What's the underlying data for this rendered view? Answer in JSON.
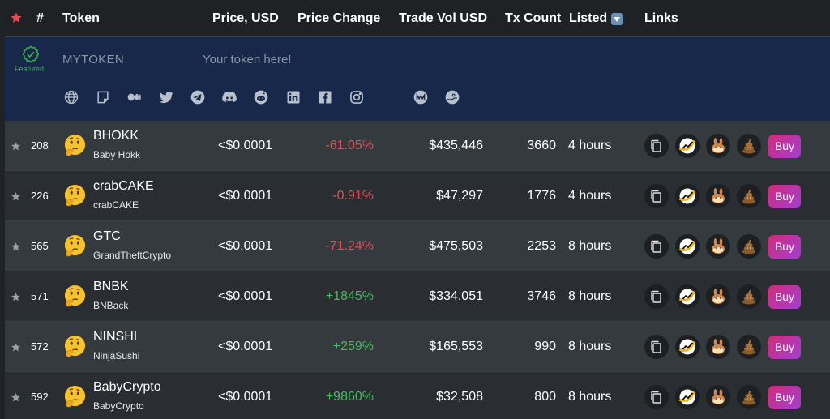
{
  "header": {
    "rank": "#",
    "token": "Token",
    "price": "Price, USD",
    "change": "Price Change",
    "volume": "Trade Vol USD",
    "tx_count": "Tx Count",
    "listed": "Listed",
    "links": "Links"
  },
  "featured": {
    "label": "Featured:",
    "token_name": "MYTOKEN",
    "tagline": "Your token here!",
    "social_icons": [
      "globe-icon",
      "document-icon",
      "medium-icon",
      "twitter-icon",
      "telegram-icon",
      "discord-icon",
      "reddit-icon",
      "linkedin-icon",
      "facebook-icon",
      "instagram-icon",
      "coinmarketcap-icon",
      "coingecko-icon"
    ]
  },
  "rows": [
    {
      "rank": "208",
      "symbol": "BHOKK",
      "name": "Baby Hokk",
      "price": "<$0.0001",
      "change": "-61.05%",
      "direction": "neg",
      "volume": "$435,446",
      "tx": "3660",
      "listed": "4 hours",
      "buy": "Buy"
    },
    {
      "rank": "226",
      "symbol": "crabCAKE",
      "name": "crabCAKE",
      "price": "<$0.0001",
      "change": "-0.91%",
      "direction": "neg",
      "volume": "$47,297",
      "tx": "1776",
      "listed": "4 hours",
      "buy": "Buy"
    },
    {
      "rank": "565",
      "symbol": "GTC",
      "name": "GrandTheftCrypto",
      "price": "<$0.0001",
      "change": "-71.24%",
      "direction": "neg",
      "volume": "$475,503",
      "tx": "2253",
      "listed": "8 hours",
      "buy": "Buy"
    },
    {
      "rank": "571",
      "symbol": "BNBK",
      "name": "BNBack",
      "price": "<$0.0001",
      "change": "+1845%",
      "direction": "pos",
      "volume": "$334,051",
      "tx": "3746",
      "listed": "8 hours",
      "buy": "Buy"
    },
    {
      "rank": "572",
      "symbol": "NINSHI",
      "name": "NinjaSushi",
      "price": "<$0.0001",
      "change": "+259%",
      "direction": "pos",
      "volume": "$165,553",
      "tx": "990",
      "listed": "8 hours",
      "buy": "Buy"
    },
    {
      "rank": "592",
      "symbol": "BabyCrypto",
      "name": "BabyCrypto",
      "price": "<$0.0001",
      "change": "+9860%",
      "direction": "pos",
      "volume": "$32,508",
      "tx": "800",
      "listed": "8 hours",
      "buy": "Buy"
    }
  ],
  "colors": {
    "negative": "#e64b54",
    "positive": "#3fbf5a",
    "featured_bg": "#17284a",
    "accent_star": "#e64b54"
  }
}
